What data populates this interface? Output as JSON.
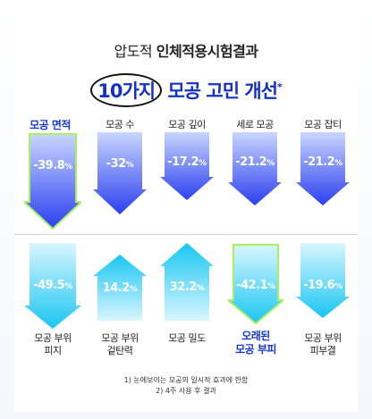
{
  "header": {
    "title_prefix": "압도적",
    "title_bold": "인체적용시험결과",
    "headline_circled": "10가지",
    "headline_rest": "모공 고민 개선",
    "headline_mark": "*"
  },
  "top_row": [
    {
      "label": "모공 면적",
      "value": "-39.8",
      "unit": "%",
      "highlight": true
    },
    {
      "label": "모공 수",
      "value": "-32",
      "unit": "%",
      "highlight": false
    },
    {
      "label": "모공 깊이",
      "value": "-17.2",
      "unit": "%",
      "highlight": false
    },
    {
      "label": "세로 모공",
      "value": "-21.2",
      "unit": "%",
      "highlight": false
    },
    {
      "label": "모공 잡티",
      "value": "-21.2",
      "unit": "%",
      "highlight": false
    }
  ],
  "bottom_row": [
    {
      "label1": "모공 부위",
      "label2": "피지",
      "value": "-49.5",
      "unit": "%",
      "highlight": false
    },
    {
      "label1": "모공 부위",
      "label2": "겉탄력",
      "value": "14.2",
      "unit": "%",
      "highlight": false
    },
    {
      "label1": "모공 밀도",
      "label2": "",
      "value": "32.2",
      "unit": "%",
      "highlight": false
    },
    {
      "label1": "오래된",
      "label2": "모공 부피",
      "value": "-42.1",
      "unit": "%",
      "highlight": true
    },
    {
      "label1": "모공 부위",
      "label2": "피부결",
      "value": "-19.6",
      "unit": "%",
      "highlight": false
    }
  ],
  "footnotes": {
    "line1": "1) 눈에보이는 모공의 일시적 효과에 한함",
    "line2": "2) 4주 사용 후 결과"
  },
  "colors": {
    "blue_dark": "#2b3ff0",
    "blue_light": "#c9d6ff",
    "cyan_dark": "#19c6f2",
    "cyan_light": "#d9f6ff",
    "highlight_border": "#a8f060",
    "headline": "#1430c8"
  }
}
